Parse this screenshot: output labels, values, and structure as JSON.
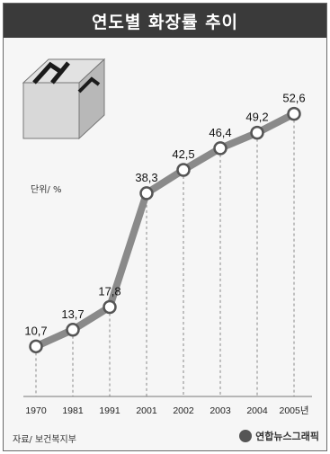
{
  "title": "연도별 화장률 추이",
  "unit": "단위/ %",
  "source": "자료/ 보건복지부",
  "credit": "연합뉴스그래픽",
  "colors": {
    "line": "#8a8a8a",
    "marker_stroke": "#555555",
    "marker_fill": "#ffffff",
    "title_bg": "#3a3a3a"
  },
  "chart_data": {
    "type": "line",
    "categories": [
      "1970",
      "1981",
      "1991",
      "2001",
      "2002",
      "2003",
      "2004",
      "2005년"
    ],
    "values": [
      10.7,
      13.7,
      17.8,
      38.3,
      42.5,
      46.4,
      49.2,
      52.6
    ],
    "value_labels": [
      "10,7",
      "13,7",
      "17,8",
      "38,3",
      "42,5",
      "46,4",
      "49,2",
      "52,6"
    ],
    "ylim": [
      8,
      54
    ],
    "grid": "vertical dashed drop lines",
    "legend": "none"
  }
}
